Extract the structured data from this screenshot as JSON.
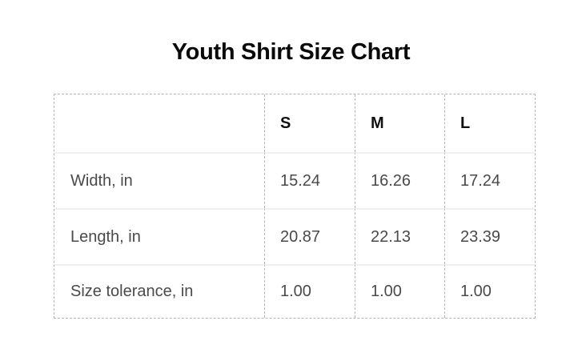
{
  "title": "Youth Shirt Size Chart",
  "colors": {
    "background": "#ffffff",
    "title_text": "#0a0a0a",
    "header_text": "#111111",
    "body_text": "#4a4a4a",
    "dashed_border": "#b5b5b5",
    "row_separator": "#f0f0f0"
  },
  "chart_data": {
    "type": "table",
    "title": "Youth Shirt Size Chart",
    "columns": [
      "",
      "S",
      "M",
      "L"
    ],
    "rows": [
      {
        "label": "Width, in",
        "values": [
          "15.24",
          "16.26",
          "17.24"
        ]
      },
      {
        "label": "Length, in",
        "values": [
          "20.87",
          "22.13",
          "23.39"
        ]
      },
      {
        "label": "Size tolerance, in",
        "values": [
          "1.00",
          "1.00",
          "1.00"
        ]
      }
    ],
    "units": "in",
    "layout": {
      "grid": "dashed outer border and column dividers, light solid row separators"
    }
  }
}
